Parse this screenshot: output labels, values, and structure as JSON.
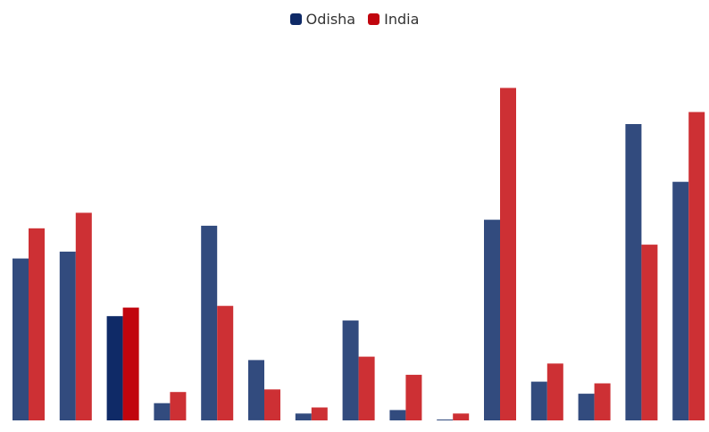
{
  "chart_data": {
    "type": "bar",
    "categories": [
      "",
      "",
      "",
      "",
      "",
      "",
      "",
      "",
      "",
      "",
      "",
      "",
      "",
      "",
      ""
    ],
    "series": [
      {
        "name": "Odisha",
        "color": "#324b7e",
        "highlight_color": "#0f2a67",
        "values": [
          188,
          196,
          121,
          20,
          226,
          70,
          8,
          116,
          12,
          1,
          233,
          45,
          31,
          344,
          277
        ]
      },
      {
        "name": "India",
        "color": "#cd3034",
        "highlight_color": "#c1050e",
        "values": [
          223,
          241,
          131,
          33,
          133,
          36,
          15,
          74,
          53,
          8,
          386,
          66,
          43,
          204,
          358
        ]
      }
    ],
    "highlighted_category_index": 2,
    "ylim": [
      0,
      400
    ],
    "legend": "top-center",
    "grid": false
  }
}
